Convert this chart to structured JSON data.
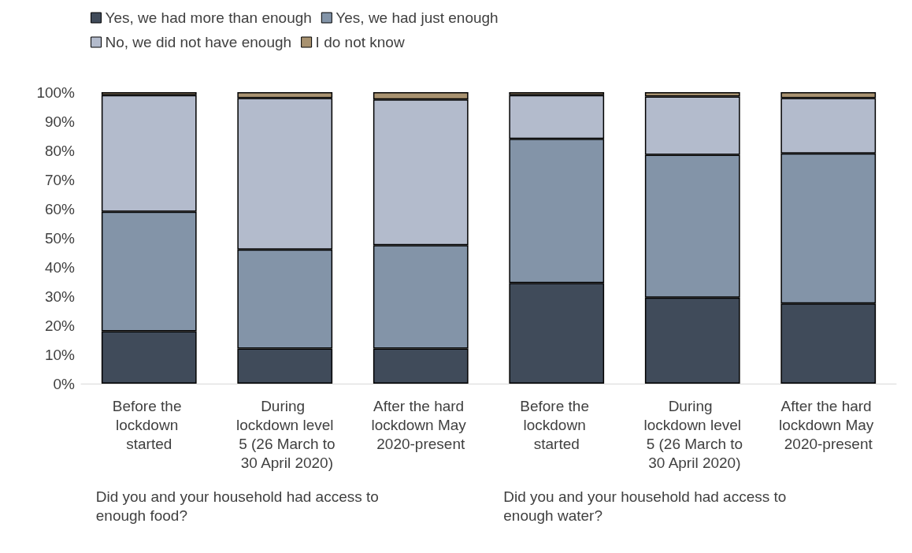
{
  "chart_data": {
    "type": "bar",
    "stacked": true,
    "categories": [
      "Before the lockdown started",
      "During lockdown level 5 (26 March to 30 April 2020)",
      "After the hard lockdown May 2020-present",
      "Before the lockdown started",
      "During lockdown level 5 (26 March to 30 April 2020)",
      "After the hard lockdown May 2020-present"
    ],
    "series": [
      {
        "name": "Yes, we had more than enough",
        "color": "#404b5a",
        "values": [
          18,
          12,
          12,
          34.5,
          29.5,
          27.5
        ]
      },
      {
        "name": "Yes, we had just enough",
        "color": "#8394a8",
        "values": [
          41,
          34,
          35.5,
          49.5,
          49,
          51.5
        ]
      },
      {
        "name": "No, we did not have enough",
        "color": "#b3bbcc",
        "values": [
          40,
          52,
          50,
          15,
          20,
          19
        ]
      },
      {
        "name": "I do not know",
        "color": "#a89270",
        "values": [
          1,
          2,
          2.5,
          1,
          1.5,
          2
        ]
      }
    ],
    "ylim": [
      0,
      100
    ],
    "yticks": [
      {
        "value": 0,
        "label": "0%"
      },
      {
        "value": 10,
        "label": "10%"
      },
      {
        "value": 20,
        "label": "20%"
      },
      {
        "value": 30,
        "label": "30%"
      },
      {
        "value": 40,
        "label": "40%"
      },
      {
        "value": 50,
        "label": "50%"
      },
      {
        "value": 60,
        "label": "60%"
      },
      {
        "value": 70,
        "label": "70%"
      },
      {
        "value": 80,
        "label": "80%"
      },
      {
        "value": 90,
        "label": "90%"
      },
      {
        "value": 100,
        "label": "100%"
      }
    ],
    "legend": "top",
    "annotations": [
      "Did you and your household had access to enough food?",
      "Did you and your household had access to enough water?"
    ]
  }
}
